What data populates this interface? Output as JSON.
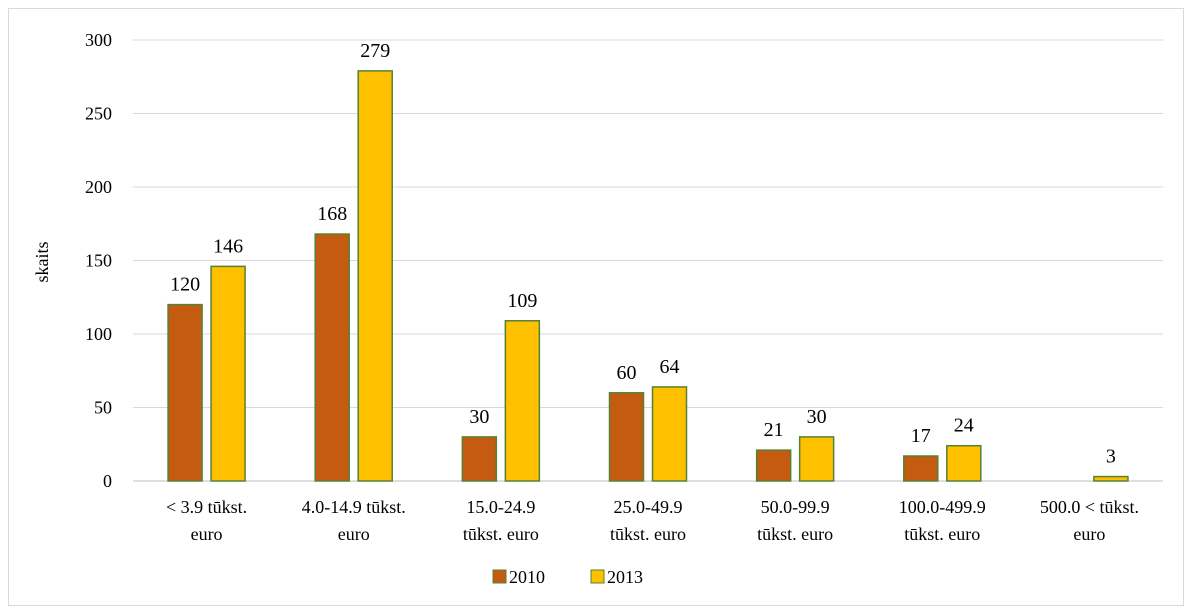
{
  "chart_data": {
    "type": "bar",
    "ylabel": "skaits",
    "xlabel": "",
    "ylim": [
      0,
      300
    ],
    "yticks": [
      0,
      50,
      100,
      150,
      200,
      250,
      300
    ],
    "grid": true,
    "legend_position": "bottom",
    "categories": [
      [
        "< 3.9 tūkst.",
        "euro"
      ],
      [
        "4.0-14.9 tūkst.",
        "euro"
      ],
      [
        "15.0-24.9",
        "tūkst. euro"
      ],
      [
        "25.0-49.9",
        "tūkst. euro"
      ],
      [
        "50.0-99.9",
        "tūkst. euro"
      ],
      [
        "100.0-499.9",
        "tūkst. euro"
      ],
      [
        "500.0 < tūkst.",
        "euro"
      ]
    ],
    "series": [
      {
        "name": "2010",
        "color": "#c55a11",
        "values": [
          120,
          168,
          30,
          60,
          21,
          17,
          null
        ]
      },
      {
        "name": "2013",
        "color": "#ffc000",
        "values": [
          146,
          279,
          109,
          64,
          30,
          24,
          3
        ]
      }
    ],
    "bar_stroke": "#548235"
  }
}
